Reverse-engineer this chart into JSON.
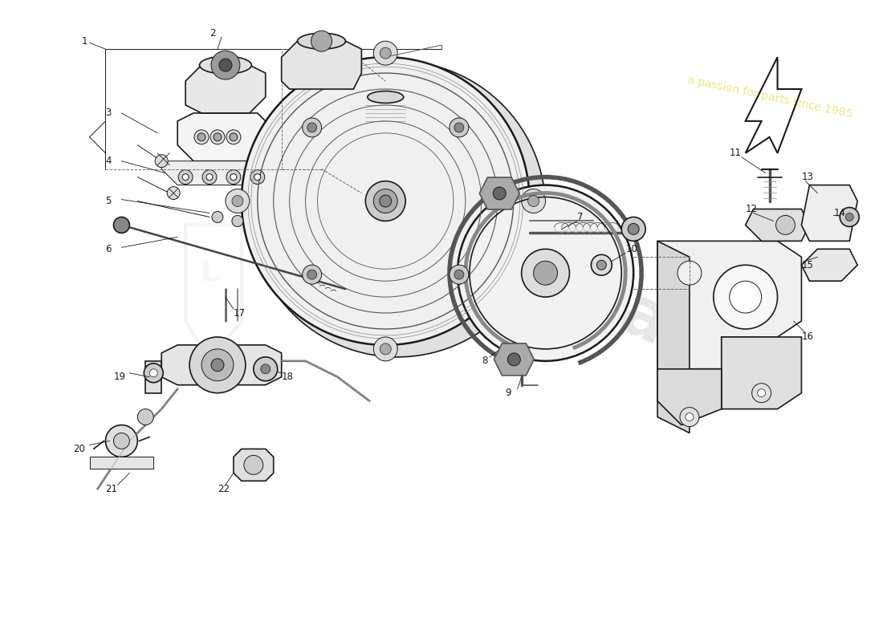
{
  "bg_color": "#ffffff",
  "line_color": "#1a1a1a",
  "dark_color": "#333333",
  "gray_color": "#888888",
  "light_gray": "#cccccc",
  "watermark_color": "#d8d8d8",
  "watermark_yellow": "#e8e870",
  "figsize": [
    11.0,
    8.0
  ],
  "dpi": 100,
  "xlim": [
    0,
    110
  ],
  "ylim": [
    0,
    80
  ],
  "fs_label": 7.5,
  "lw_main": 1.2,
  "lw_thin": 0.7,
  "lw_thick": 1.8
}
